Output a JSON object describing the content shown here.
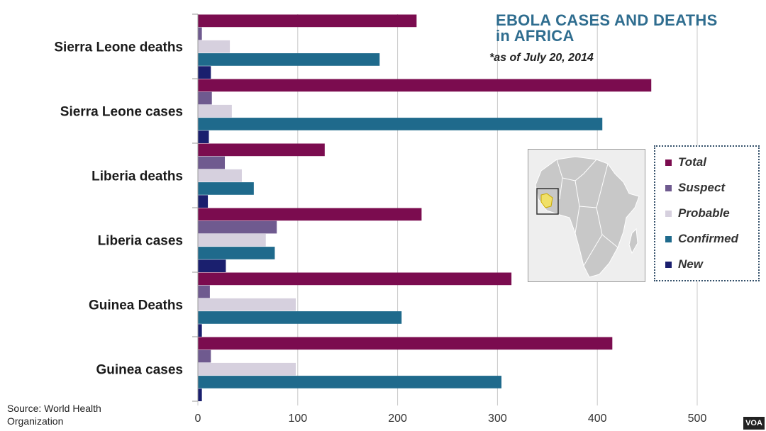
{
  "chart_data": {
    "type": "bar",
    "orientation": "horizontal",
    "title": "EBOLA CASES AND DEATHS in AFRICA",
    "title_line1": "EBOLA CASES AND DEATHS",
    "title_line2": "in AFRICA",
    "subtitle": "*as of July 20, 2014",
    "categories": [
      "Sierra Leone deaths",
      "Sierra Leone cases",
      "Liberia deaths",
      "Liberia cases",
      "Guinea Deaths",
      "Guinea cases"
    ],
    "series": [
      {
        "name": "Total",
        "color": "#7b0c4f",
        "values": [
          219,
          454,
          127,
          224,
          314,
          415
        ]
      },
      {
        "name": "Suspect",
        "color": "#6f5a8f",
        "values": [
          4,
          14,
          27,
          79,
          12,
          13
        ]
      },
      {
        "name": "Probable",
        "color": "#d6d0de",
        "values": [
          32,
          34,
          44,
          68,
          98,
          98
        ]
      },
      {
        "name": "Confirmed",
        "color": "#1f6a8c",
        "values": [
          182,
          405,
          56,
          77,
          204,
          304
        ]
      },
      {
        "name": "New",
        "color": "#1a1f6e",
        "values": [
          13,
          11,
          10,
          28,
          4,
          4
        ]
      }
    ],
    "xlim": [
      0,
      500
    ],
    "xticks": [
      "0",
      "100",
      "200",
      "300",
      "400",
      "500"
    ],
    "xlabel": "",
    "ylabel": "",
    "grid": true,
    "legend": "right"
  },
  "source": {
    "line1": "Source: World Health",
    "line2": "Organization"
  },
  "watermark": "VOA"
}
